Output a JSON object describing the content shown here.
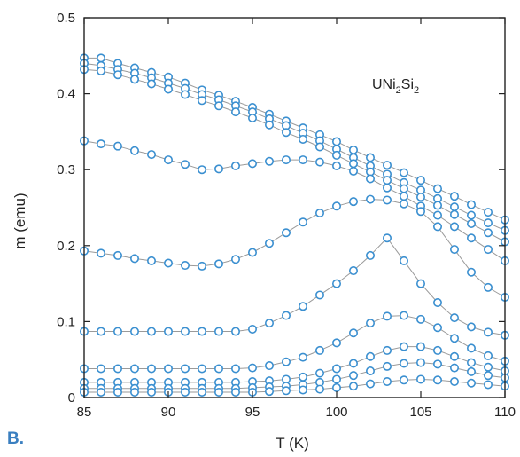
{
  "panel_label": "B.",
  "chart_data": {
    "type": "scatter",
    "title": "",
    "annotation": {
      "base": "UNi",
      "sub1": "2",
      "mid": "Si",
      "sub2": "2"
    },
    "xlabel": "T (K)",
    "ylabel": "m (emu)",
    "xlim": [
      85,
      110
    ],
    "ylim": [
      0,
      0.5
    ],
    "xticks": [
      85,
      90,
      95,
      100,
      105,
      110
    ],
    "yticks": [
      0,
      0.1,
      0.2,
      0.3,
      0.4,
      0.5
    ],
    "yticklabels": [
      "0",
      "0.1",
      "0.2",
      "0.3",
      "0.4",
      "0.5"
    ],
    "grid": false,
    "marker": "open-circle",
    "colors": {
      "marker": "#3a8fd0",
      "line": "#9a9a9a",
      "axis": "#222222"
    },
    "series": [
      {
        "x": [
          85,
          86,
          87,
          88,
          89,
          90,
          91,
          92,
          93,
          94,
          95,
          96,
          97,
          98,
          99,
          100,
          101,
          102,
          103,
          104,
          105,
          106,
          107,
          108,
          109,
          110
        ],
        "y": [
          0.447,
          0.447,
          0.44,
          0.434,
          0.428,
          0.422,
          0.414,
          0.405,
          0.398,
          0.39,
          0.382,
          0.373,
          0.364,
          0.355,
          0.346,
          0.337,
          0.326,
          0.316,
          0.306,
          0.296,
          0.286,
          0.275,
          0.265,
          0.254,
          0.244,
          0.234
        ]
      },
      {
        "x": [
          85,
          86,
          87,
          88,
          89,
          90,
          91,
          92,
          93,
          94,
          95,
          96,
          97,
          98,
          99,
          100,
          101,
          102,
          103,
          104,
          105,
          106,
          107,
          108,
          109,
          110
        ],
        "y": [
          0.44,
          0.437,
          0.432,
          0.427,
          0.421,
          0.414,
          0.407,
          0.399,
          0.392,
          0.384,
          0.376,
          0.367,
          0.358,
          0.348,
          0.338,
          0.327,
          0.316,
          0.305,
          0.294,
          0.283,
          0.273,
          0.262,
          0.251,
          0.24,
          0.23,
          0.22
        ]
      },
      {
        "x": [
          85,
          86,
          87,
          88,
          89,
          90,
          91,
          92,
          93,
          94,
          95,
          96,
          97,
          98,
          99,
          100,
          101,
          102,
          103,
          104,
          105,
          106,
          107,
          108,
          109,
          110
        ],
        "y": [
          0.432,
          0.43,
          0.425,
          0.419,
          0.413,
          0.406,
          0.399,
          0.391,
          0.384,
          0.376,
          0.368,
          0.359,
          0.349,
          0.34,
          0.33,
          0.319,
          0.308,
          0.297,
          0.286,
          0.275,
          0.264,
          0.253,
          0.241,
          0.229,
          0.217,
          0.205
        ]
      },
      {
        "x": [
          85,
          86,
          87,
          88,
          89,
          90,
          91,
          92,
          93,
          94,
          95,
          96,
          97,
          98,
          99,
          100,
          101,
          102,
          103,
          104,
          105,
          106,
          107,
          108,
          109,
          110
        ],
        "y": [
          0.338,
          0.334,
          0.331,
          0.325,
          0.32,
          0.313,
          0.307,
          0.3,
          0.301,
          0.305,
          0.308,
          0.311,
          0.313,
          0.313,
          0.31,
          0.305,
          0.298,
          0.288,
          0.276,
          0.265,
          0.252,
          0.24,
          0.225,
          0.21,
          0.195,
          0.18
        ]
      },
      {
        "x": [
          85,
          86,
          87,
          88,
          89,
          90,
          91,
          92,
          93,
          94,
          95,
          96,
          97,
          98,
          99,
          100,
          101,
          102,
          103,
          104,
          105,
          106,
          107,
          108,
          109,
          110
        ],
        "y": [
          0.193,
          0.19,
          0.187,
          0.183,
          0.18,
          0.177,
          0.174,
          0.173,
          0.176,
          0.182,
          0.191,
          0.203,
          0.217,
          0.231,
          0.243,
          0.252,
          0.258,
          0.261,
          0.26,
          0.255,
          0.245,
          0.225,
          0.195,
          0.165,
          0.145,
          0.132
        ]
      },
      {
        "x": [
          85,
          86,
          87,
          88,
          89,
          90,
          91,
          92,
          93,
          94,
          95,
          96,
          97,
          98,
          99,
          100,
          101,
          102,
          103,
          104,
          105,
          106,
          107,
          108,
          109,
          110
        ],
        "y": [
          0.087,
          0.087,
          0.087,
          0.087,
          0.087,
          0.087,
          0.087,
          0.087,
          0.087,
          0.087,
          0.09,
          0.098,
          0.108,
          0.12,
          0.135,
          0.15,
          0.167,
          0.187,
          0.21,
          0.18,
          0.15,
          0.125,
          0.105,
          0.093,
          0.086,
          0.082
        ]
      },
      {
        "x": [
          85,
          86,
          87,
          88,
          89,
          90,
          91,
          92,
          93,
          94,
          95,
          96,
          97,
          98,
          99,
          100,
          101,
          102,
          103,
          104,
          105,
          106,
          107,
          108,
          109,
          110
        ],
        "y": [
          0.038,
          0.038,
          0.038,
          0.038,
          0.038,
          0.038,
          0.038,
          0.038,
          0.038,
          0.038,
          0.039,
          0.042,
          0.047,
          0.053,
          0.062,
          0.072,
          0.085,
          0.098,
          0.107,
          0.108,
          0.103,
          0.092,
          0.078,
          0.065,
          0.055,
          0.048
        ]
      },
      {
        "x": [
          85,
          86,
          87,
          88,
          89,
          90,
          91,
          92,
          93,
          94,
          95,
          96,
          97,
          98,
          99,
          100,
          101,
          102,
          103,
          104,
          105,
          106,
          107,
          108,
          109,
          110
        ],
        "y": [
          0.02,
          0.02,
          0.02,
          0.02,
          0.02,
          0.02,
          0.02,
          0.02,
          0.02,
          0.02,
          0.021,
          0.022,
          0.024,
          0.027,
          0.032,
          0.038,
          0.045,
          0.054,
          0.062,
          0.067,
          0.067,
          0.062,
          0.054,
          0.046,
          0.04,
          0.035
        ]
      },
      {
        "x": [
          85,
          86,
          87,
          88,
          89,
          90,
          91,
          92,
          93,
          94,
          95,
          96,
          97,
          98,
          99,
          100,
          101,
          102,
          103,
          104,
          105,
          106,
          107,
          108,
          109,
          110
        ],
        "y": [
          0.012,
          0.012,
          0.012,
          0.012,
          0.012,
          0.012,
          0.012,
          0.012,
          0.012,
          0.012,
          0.013,
          0.014,
          0.015,
          0.017,
          0.02,
          0.024,
          0.029,
          0.035,
          0.041,
          0.045,
          0.046,
          0.044,
          0.039,
          0.034,
          0.029,
          0.026
        ]
      },
      {
        "x": [
          85,
          86,
          87,
          88,
          89,
          90,
          91,
          92,
          93,
          94,
          95,
          96,
          97,
          98,
          99,
          100,
          101,
          102,
          103,
          104,
          105,
          106,
          107,
          108,
          109,
          110
        ],
        "y": [
          0.007,
          0.007,
          0.007,
          0.007,
          0.007,
          0.007,
          0.007,
          0.007,
          0.007,
          0.007,
          0.007,
          0.008,
          0.009,
          0.01,
          0.011,
          0.013,
          0.015,
          0.018,
          0.021,
          0.023,
          0.024,
          0.023,
          0.021,
          0.019,
          0.017,
          0.015
        ]
      }
    ]
  }
}
